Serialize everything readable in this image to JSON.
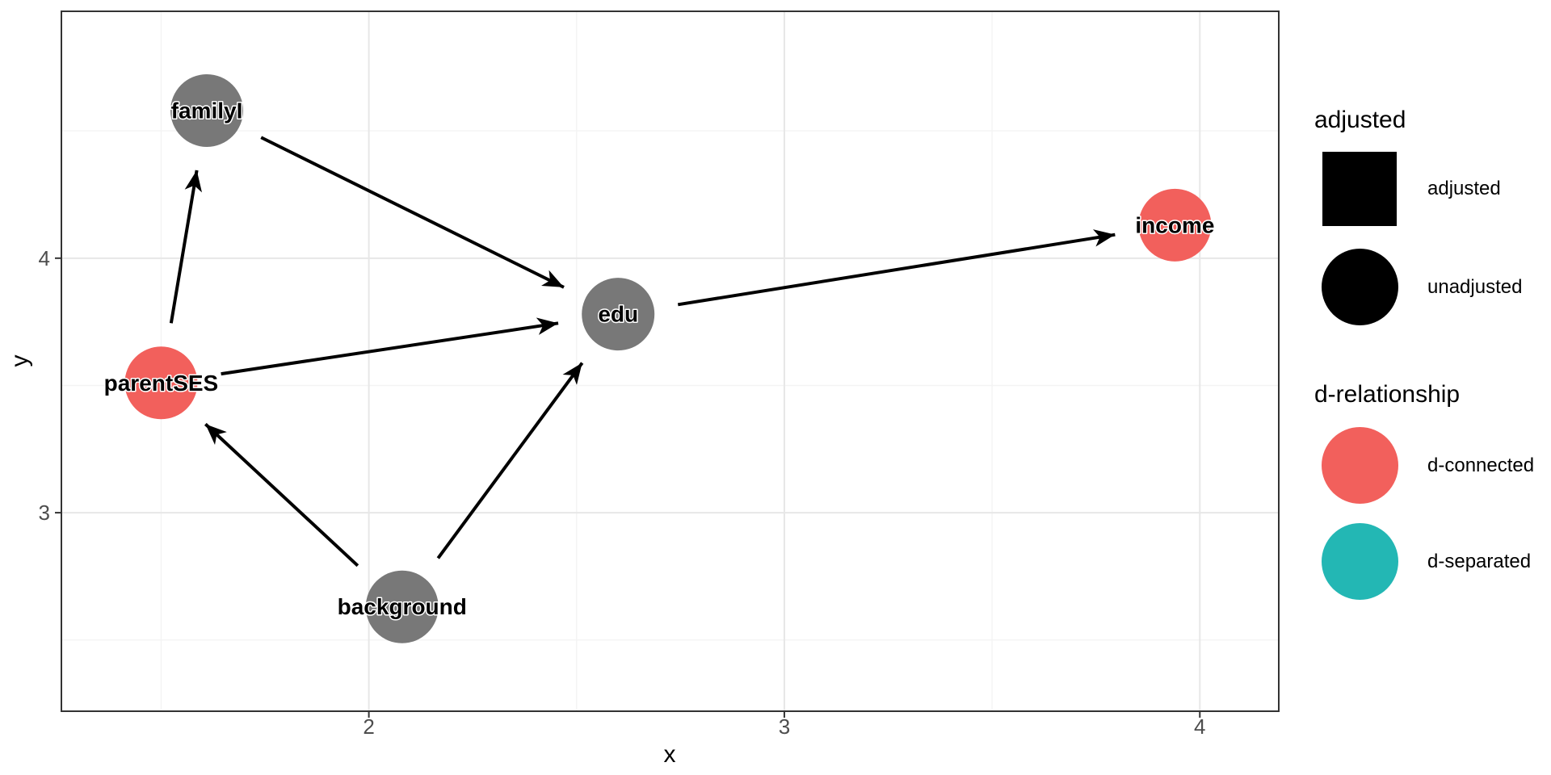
{
  "chart_data": {
    "type": "scatter",
    "subtype": "dag",
    "title": "",
    "xlabel": "x",
    "ylabel": "y",
    "xlim": [
      1.26,
      4.19
    ],
    "ylim": [
      2.22,
      4.97
    ],
    "x_major_ticks": [
      2,
      3,
      4
    ],
    "y_major_ticks": [
      3,
      4
    ],
    "x_minor_gridlines": [
      1.5,
      2.5,
      3.5
    ],
    "y_minor_gridlines": [
      2.5,
      3.5,
      4.5
    ],
    "grid": true,
    "legend_position": "right",
    "nodes": [
      {
        "label": "familyI",
        "x": 1.61,
        "y": 4.58,
        "color": "#787878",
        "adjusted": "unadjusted"
      },
      {
        "label": "parentSES",
        "x": 1.5,
        "y": 3.51,
        "color": "#F2605C",
        "adjusted": "unadjusted",
        "d_relationship": "d-connected"
      },
      {
        "label": "background",
        "x": 2.08,
        "y": 2.63,
        "color": "#787878",
        "adjusted": "unadjusted"
      },
      {
        "label": "edu",
        "x": 2.6,
        "y": 3.78,
        "color": "#787878",
        "adjusted": "unadjusted"
      },
      {
        "label": "income",
        "x": 3.94,
        "y": 4.13,
        "color": "#F2605C",
        "adjusted": "unadjusted",
        "d_relationship": "d-connected"
      }
    ],
    "edges": [
      {
        "from": "parentSES",
        "to": "familyI"
      },
      {
        "from": "parentSES",
        "to": "edu"
      },
      {
        "from": "familyI",
        "to": "edu"
      },
      {
        "from": "background",
        "to": "parentSES"
      },
      {
        "from": "background",
        "to": "edu"
      },
      {
        "from": "edu",
        "to": "income"
      }
    ]
  },
  "colors": {
    "edge": "#000000",
    "grid_major": "#E7E7E7",
    "grid_minor": "#F4F4F4",
    "panel_border": "#333333",
    "tick_mark": "#333333",
    "tick_label": "#4D4D4D",
    "axis_title": "#000000",
    "node_label": "#000000"
  },
  "legend": {
    "adjusted": {
      "title": "adjusted",
      "items": [
        {
          "shape": "square",
          "color": "#000000",
          "label": "adjusted"
        },
        {
          "shape": "circle",
          "color": "#000000",
          "label": "unadjusted"
        }
      ]
    },
    "d_relationship": {
      "title": "d-relationship",
      "items": [
        {
          "shape": "circle",
          "color": "#F2605C",
          "label": "d-connected"
        },
        {
          "shape": "circle",
          "color": "#23B7B4",
          "label": "d-separated"
        }
      ]
    }
  }
}
